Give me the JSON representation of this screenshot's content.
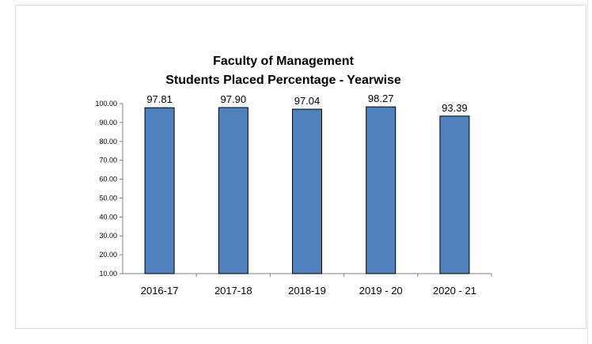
{
  "chart_data": {
    "type": "bar",
    "title": "Faculty of Management",
    "subtitle": "Students Placed Percentage - Yearwise",
    "xlabel": "",
    "ylabel": "",
    "categories": [
      "2016-17",
      "2017-18",
      "2018-19",
      "2019 - 20",
      "2020 - 21"
    ],
    "values": [
      97.81,
      97.9,
      97.04,
      98.27,
      93.39
    ],
    "data_labels": [
      "97.81",
      "97.90",
      "97.04",
      "98.27",
      "93.39"
    ],
    "ylim": [
      10,
      100
    ],
    "yticks": [
      10,
      20,
      30,
      40,
      50,
      60,
      70,
      80,
      90,
      100
    ],
    "ytick_labels": [
      "10.00",
      "20.00",
      "30.00",
      "40.00",
      "50.00",
      "60.00",
      "70.00",
      "80.00",
      "90.00",
      "100.00"
    ],
    "grid": false,
    "legend": "none",
    "colors": {
      "bar_fill": "#4f81bd",
      "bar_stroke": "#000000",
      "axis": "#808080"
    }
  }
}
